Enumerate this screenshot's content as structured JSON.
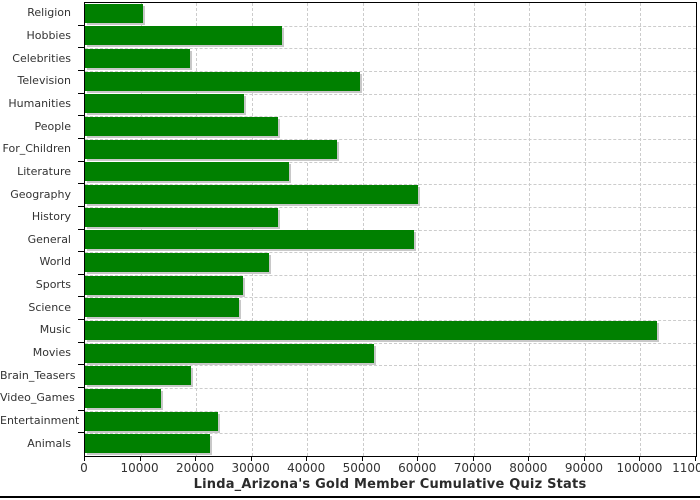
{
  "chart_data": {
    "type": "bar",
    "orientation": "horizontal",
    "title": "Linda_Arizona's Gold Member Cumulative Quiz Stats",
    "categories": [
      "Religion",
      "Hobbies",
      "Celebrities",
      "Television",
      "Humanities",
      "People",
      "For_Children",
      "Literature",
      "Geography",
      "History",
      "General",
      "World",
      "Sports",
      "Science",
      "Music",
      "Movies",
      "Brain_Teasers",
      "Video_Games",
      "Entertainment",
      "Animals"
    ],
    "values": [
      10500,
      35500,
      18900,
      49500,
      28600,
      34700,
      45300,
      36700,
      59900,
      34700,
      59200,
      33200,
      28500,
      27700,
      102900,
      52000,
      19100,
      13700,
      23900,
      22500
    ],
    "xlim": [
      0,
      110000
    ],
    "x_ticks": [
      0,
      10000,
      20000,
      30000,
      40000,
      50000,
      60000,
      70000,
      80000,
      90000,
      100000,
      110000
    ],
    "grid": "dashed",
    "legend": "none",
    "bar_color": "#008000",
    "bar_shadow_color": "#c8c8c8",
    "gridline_color": "#cccccc",
    "axis_color": "#000000",
    "title_color": "#2b2b2b",
    "label_color": "#333333"
  }
}
